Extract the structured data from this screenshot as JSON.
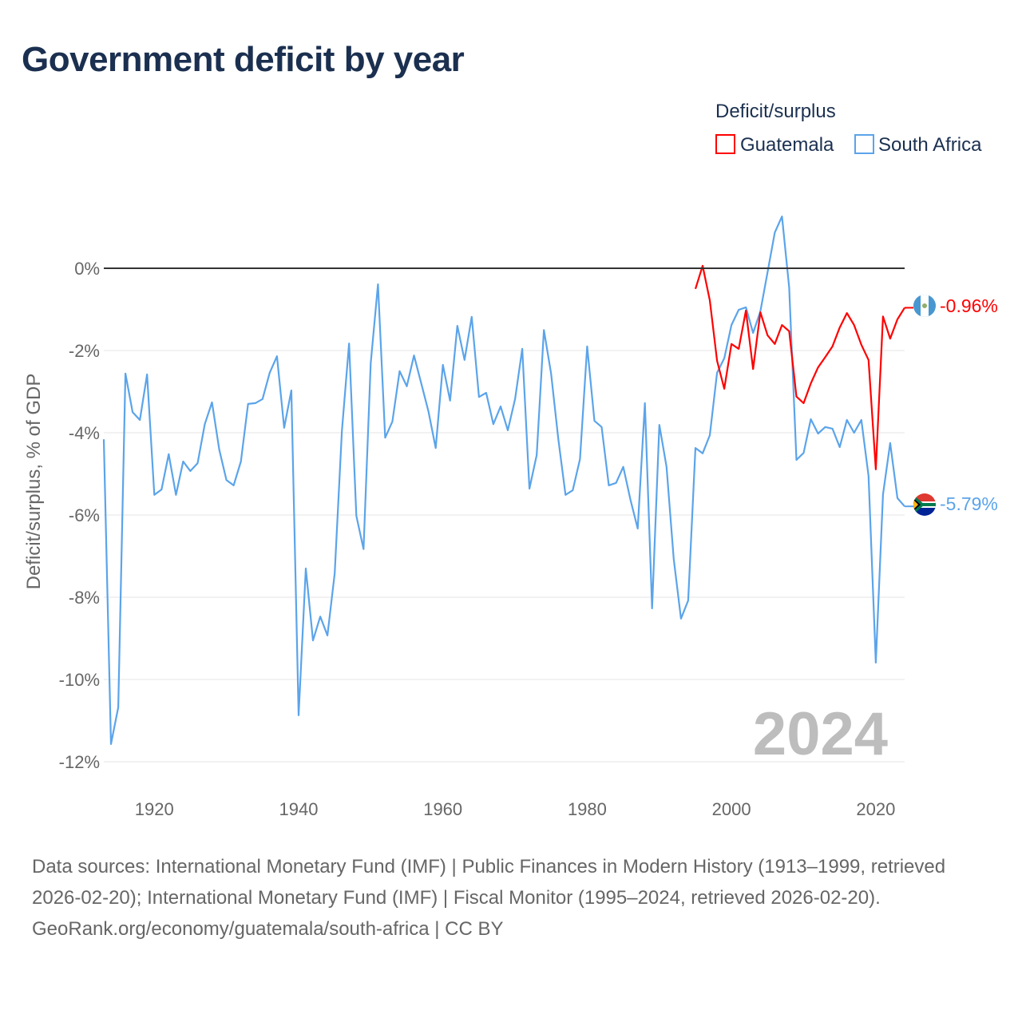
{
  "title": "Government deficit by year",
  "legend": {
    "title": "Deficit/surplus",
    "items": [
      {
        "label": "Guatemala",
        "color": "#ff0000"
      },
      {
        "label": "South Africa",
        "color": "#5ba4ea"
      }
    ]
  },
  "year_watermark": "2024",
  "footer": {
    "sources": "Data sources: International Monetary Fund (IMF) | Public Finances in Modern History (1913–1999, retrieved 2026-02-20); International Monetary Fund (IMF) | Fiscal Monitor (1995–2024, retrieved 2026-02-20).",
    "credit": "GeoRank.org/economy/guatemala/south-africa | CC BY"
  },
  "chart_data": {
    "type": "line",
    "title": "Government deficit by year",
    "xlabel": "",
    "ylabel": "Deficit/surplus, % of GDP",
    "xlim": [
      1913,
      2024
    ],
    "ylim": [
      -12,
      1.5
    ],
    "x_ticks": [
      1920,
      1940,
      1960,
      1980,
      2000,
      2020
    ],
    "y_ticks": [
      0,
      -2,
      -4,
      -6,
      -8,
      -10,
      -12
    ],
    "y_tick_labels": [
      "0%",
      "-2%",
      "-4%",
      "-6%",
      "-8%",
      "-10%",
      "-12%"
    ],
    "grid": true,
    "legend_position": "top-right",
    "end_labels": [
      "-0.96%",
      "-5.79%"
    ],
    "series": [
      {
        "name": "Guatemala",
        "color": "#ff0000",
        "start_year": 1995,
        "values": [
          -0.5,
          0.06,
          -0.78,
          -2.25,
          -2.93,
          -1.84,
          -1.96,
          -1.03,
          -2.45,
          -1.07,
          -1.63,
          -1.84,
          -1.38,
          -1.53,
          -3.12,
          -3.28,
          -2.8,
          -2.41,
          -2.16,
          -1.9,
          -1.44,
          -1.09,
          -1.38,
          -1.86,
          -2.23,
          -4.89,
          -1.17,
          -1.71,
          -1.24,
          -0.96
        ]
      },
      {
        "name": "South Africa",
        "color": "#5ba4ea",
        "start_year": 1913,
        "values": [
          -4.16,
          -11.57,
          -10.68,
          -2.56,
          -3.5,
          -3.69,
          -2.58,
          -5.51,
          -5.38,
          -4.52,
          -5.51,
          -4.7,
          -4.93,
          -4.74,
          -3.79,
          -3.26,
          -4.41,
          -5.15,
          -5.28,
          -4.7,
          -3.3,
          -3.28,
          -3.18,
          -2.54,
          -2.14,
          -3.88,
          -2.97,
          -10.87,
          -7.3,
          -9.05,
          -8.47,
          -8.93,
          -7.42,
          -3.96,
          -1.83,
          -6.02,
          -6.83,
          -2.31,
          -0.39,
          -4.12,
          -3.73,
          -2.5,
          -2.87,
          -2.12,
          -2.8,
          -3.48,
          -4.37,
          -2.35,
          -3.22,
          -1.4,
          -2.23,
          -1.18,
          -3.13,
          -3.03,
          -3.79,
          -3.36,
          -3.94,
          -3.18,
          -1.96,
          -5.36,
          -4.54,
          -1.5,
          -2.56,
          -4.16,
          -5.51,
          -5.4,
          -4.64,
          -1.9,
          -3.71,
          -3.86,
          -5.28,
          -5.22,
          -4.83,
          -5.63,
          -6.33,
          -3.28,
          -8.27,
          -3.81,
          -4.83,
          -7.07,
          -8.52,
          -8.08,
          -4.37,
          -4.5,
          -4.06,
          -2.54,
          -2.19,
          -1.38,
          -1.01,
          -0.95,
          -1.57,
          -1.05,
          -0.1,
          0.87,
          1.26,
          -0.47,
          -4.66,
          -4.49,
          -3.67,
          -4.02,
          -3.86,
          -3.9,
          -4.35,
          -3.69,
          -4.0,
          -3.69,
          -5.05,
          -9.59,
          -5.5,
          -4.25,
          -5.59,
          -5.79
        ]
      }
    ]
  }
}
